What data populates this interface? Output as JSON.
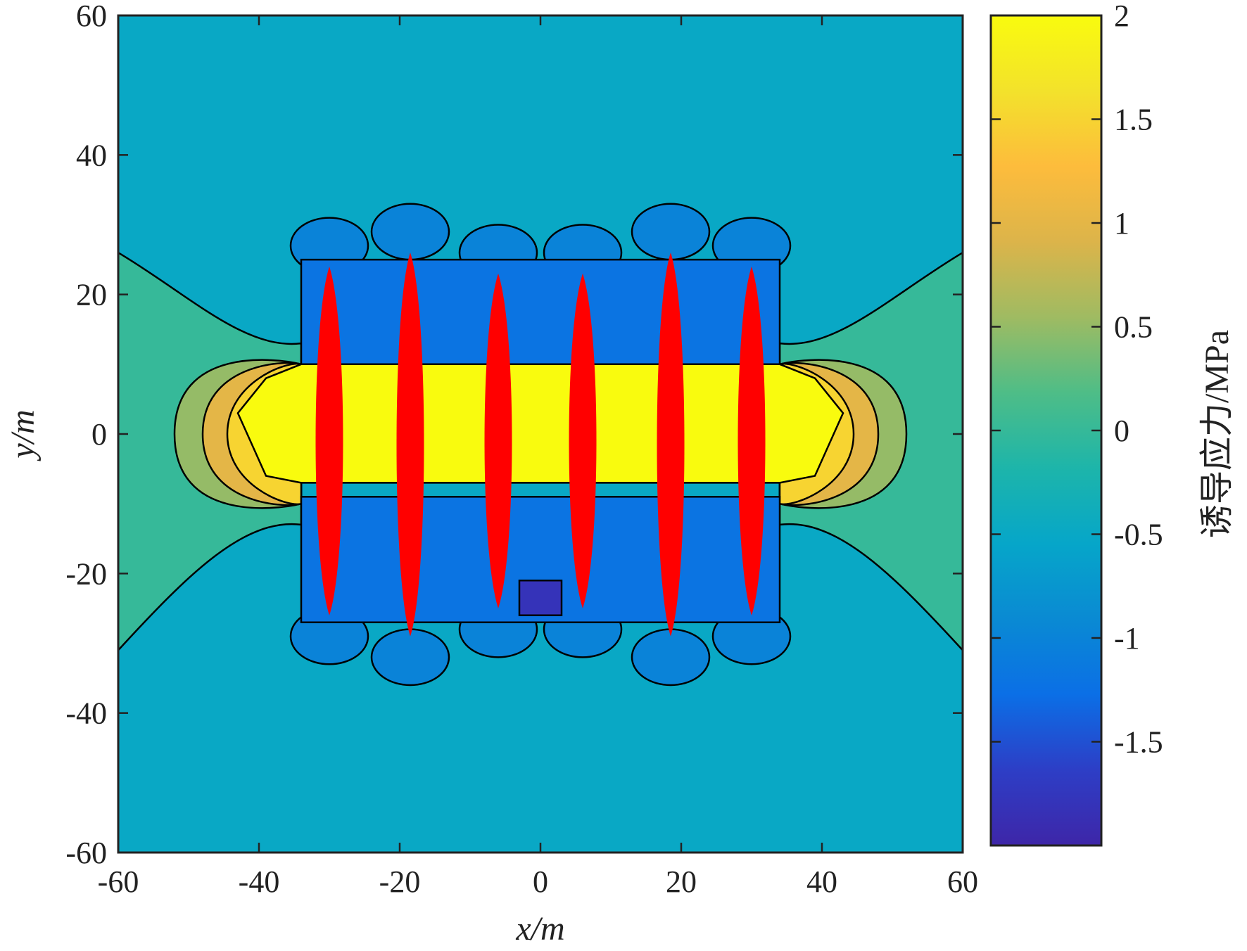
{
  "chart_data": {
    "type": "heatmap",
    "title": "",
    "xlabel": "x/m",
    "ylabel": "y/m",
    "xlim": [
      -60,
      60
    ],
    "ylim": [
      -60,
      60
    ],
    "xticks": [
      -60,
      -40,
      -20,
      0,
      20,
      40,
      60
    ],
    "yticks": [
      -60,
      -40,
      -20,
      0,
      20,
      40,
      60
    ],
    "xtick_labels": [
      "-60",
      "-40",
      "-20",
      "0",
      "20",
      "40",
      "60"
    ],
    "ytick_labels": [
      "-60",
      "-40",
      "-20",
      "0",
      "20",
      "40",
      "60"
    ],
    "grid": false,
    "colorbar": {
      "label": "诱导应力/MPa",
      "range": [
        -2,
        2
      ],
      "ticks": [
        2,
        1.5,
        1,
        0.5,
        0,
        -0.5,
        -1,
        -1.5
      ],
      "tick_labels": [
        "2",
        "1.5",
        "1",
        "0.5",
        "0",
        "-0.5",
        "-1",
        "-1.5"
      ],
      "colormap": "parula",
      "stops": [
        "#3e26a8",
        "#2d3ec6",
        "#0b6fe6",
        "#0a8ad3",
        "#06a6c9",
        "#1db5aa",
        "#4ebd87",
        "#9fbb62",
        "#dcb44a",
        "#fdbc3c",
        "#f3e22b",
        "#f9fb0e"
      ]
    },
    "background_level": -0.5,
    "fracture_color": "#ff0000",
    "contour_line_color": "#000000",
    "fractures": [
      {
        "x": -30,
        "y_range": [
          -26,
          24
        ]
      },
      {
        "x": -18.5,
        "y_range": [
          -29,
          26
        ]
      },
      {
        "x": -6,
        "y_range": [
          -25,
          23
        ]
      },
      {
        "x": 6,
        "y_range": [
          -25,
          23
        ]
      },
      {
        "x": 18.5,
        "y_range": [
          -29,
          26
        ]
      },
      {
        "x": 30,
        "y_range": [
          -26,
          24
        ]
      }
    ],
    "peak_zone": {
      "x_range": [
        -43,
        43
      ],
      "y_range": [
        -7,
        10
      ],
      "level": 2
    }
  }
}
